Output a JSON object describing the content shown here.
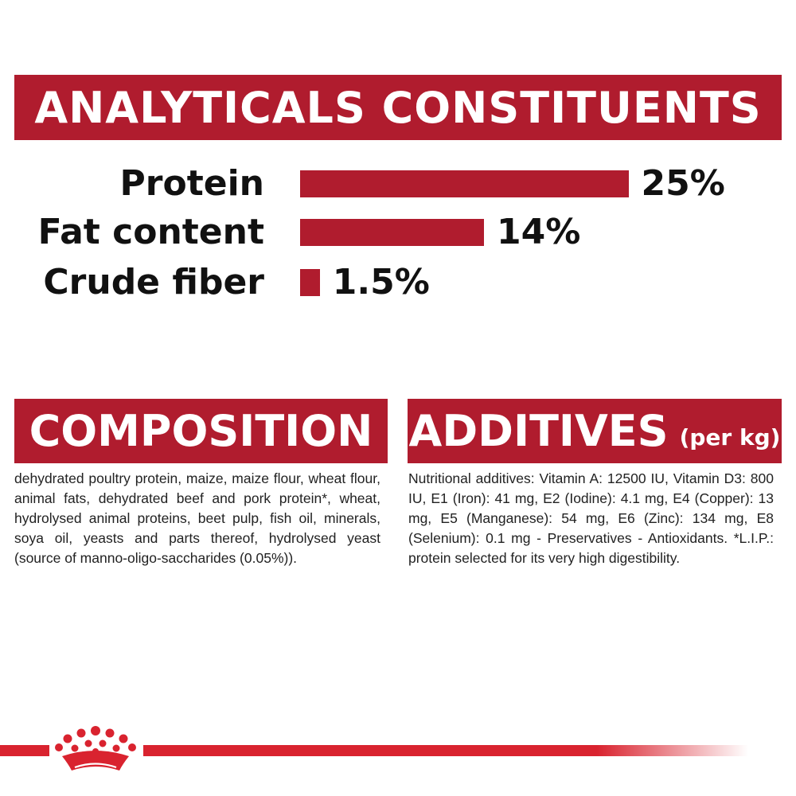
{
  "analytical": {
    "title": "ANALYTICALS CONSTITUENTS",
    "rows": [
      {
        "label": "Protein",
        "value": "25%",
        "percent": 25
      },
      {
        "label": "Fat content",
        "value": "14%",
        "percent": 14
      },
      {
        "label": "Crude fiber",
        "value": "1.5%",
        "percent": 1.5
      }
    ]
  },
  "composition": {
    "title": "COMPOSITION",
    "text": "dehydrated poultry protein, maize, maize flour, wheat flour, animal fats, dehydrated beef and pork protein*, wheat, hydrolysed animal proteins, beet pulp, fish oil, minerals, soya oil, yeasts and parts thereof, hydrolysed yeast (source of manno-oligo-saccharides (0.05%))."
  },
  "additives": {
    "title": "ADDITIVES",
    "title_suffix": "(per kg)",
    "text": "Nutritional additives: Vitamin A: 12500 IU, Vitamin D3: 800 IU, E1 (Iron): 41 mg, E2 (Iodine): 4.1 mg, E4 (Copper): 13 mg, E5 (Manganese): 54 mg, E6 (Zinc): 134 mg, E8 (Selenium): 0.1 mg - Preservatives - Antioxidants. *L.I.P.: protein selected for its very high digestibility."
  },
  "footer": {
    "logo_icon": "crown-icon"
  },
  "colors": {
    "brand_red": "#b01c2e",
    "footer_red": "#d9232f"
  }
}
